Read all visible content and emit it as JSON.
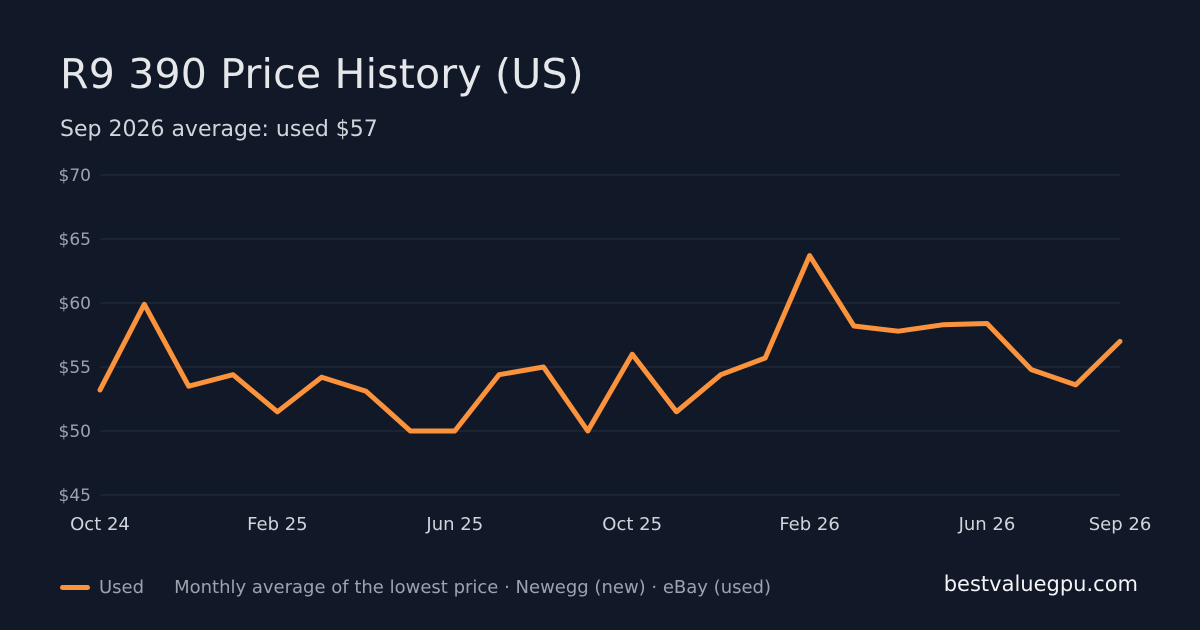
{
  "header": {
    "title": "R9 390 Price History (US)",
    "subtitle": "Sep 2026 average: used $57"
  },
  "footer": {
    "legend_label": "Used",
    "note": "Monthly average of the lowest price · Newegg (new) · eBay (used)",
    "brand": "bestvaluegpu.com"
  },
  "colors": {
    "background": "#111827",
    "grid": "#1f2937",
    "series_used": "#fb923c"
  },
  "chart_data": {
    "type": "line",
    "title": "R9 390 Price History (US)",
    "subtitle": "Sep 2026 average: used $57",
    "x": [
      "2024-10",
      "2024-11",
      "2024-12",
      "2025-01",
      "2025-02",
      "2025-03",
      "2025-04",
      "2025-05",
      "2025-06",
      "2025-07",
      "2025-08",
      "2025-09",
      "2025-10",
      "2025-11",
      "2025-12",
      "2026-01",
      "2026-02",
      "2026-03",
      "2026-04",
      "2026-05",
      "2026-06",
      "2026-07",
      "2026-08",
      "2026-09"
    ],
    "x_tick_labels": [
      {
        "x": "2024-10",
        "label": "Oct 24"
      },
      {
        "x": "2025-02",
        "label": "Feb 25"
      },
      {
        "x": "2025-06",
        "label": "Jun 25"
      },
      {
        "x": "2025-10",
        "label": "Oct 25"
      },
      {
        "x": "2026-02",
        "label": "Feb 26"
      },
      {
        "x": "2026-06",
        "label": "Jun 26"
      },
      {
        "x": "2026-09",
        "label": "Sep 26"
      }
    ],
    "y_ticks": [
      45,
      50,
      55,
      60,
      65,
      70
    ],
    "y_tick_labels": [
      "$45",
      "$50",
      "$55",
      "$60",
      "$65",
      "$70"
    ],
    "ylim": [
      45,
      70
    ],
    "grid": true,
    "legend_position": "bottom-left",
    "series": [
      {
        "name": "Used",
        "color": "#fb923c",
        "values": [
          53.2,
          59.9,
          53.5,
          54.4,
          51.5,
          54.2,
          53.1,
          50.0,
          50.0,
          54.4,
          55.0,
          50.0,
          56.0,
          51.5,
          54.4,
          55.7,
          63.7,
          58.2,
          57.8,
          58.3,
          58.4,
          54.8,
          53.6,
          57.0
        ]
      }
    ]
  }
}
